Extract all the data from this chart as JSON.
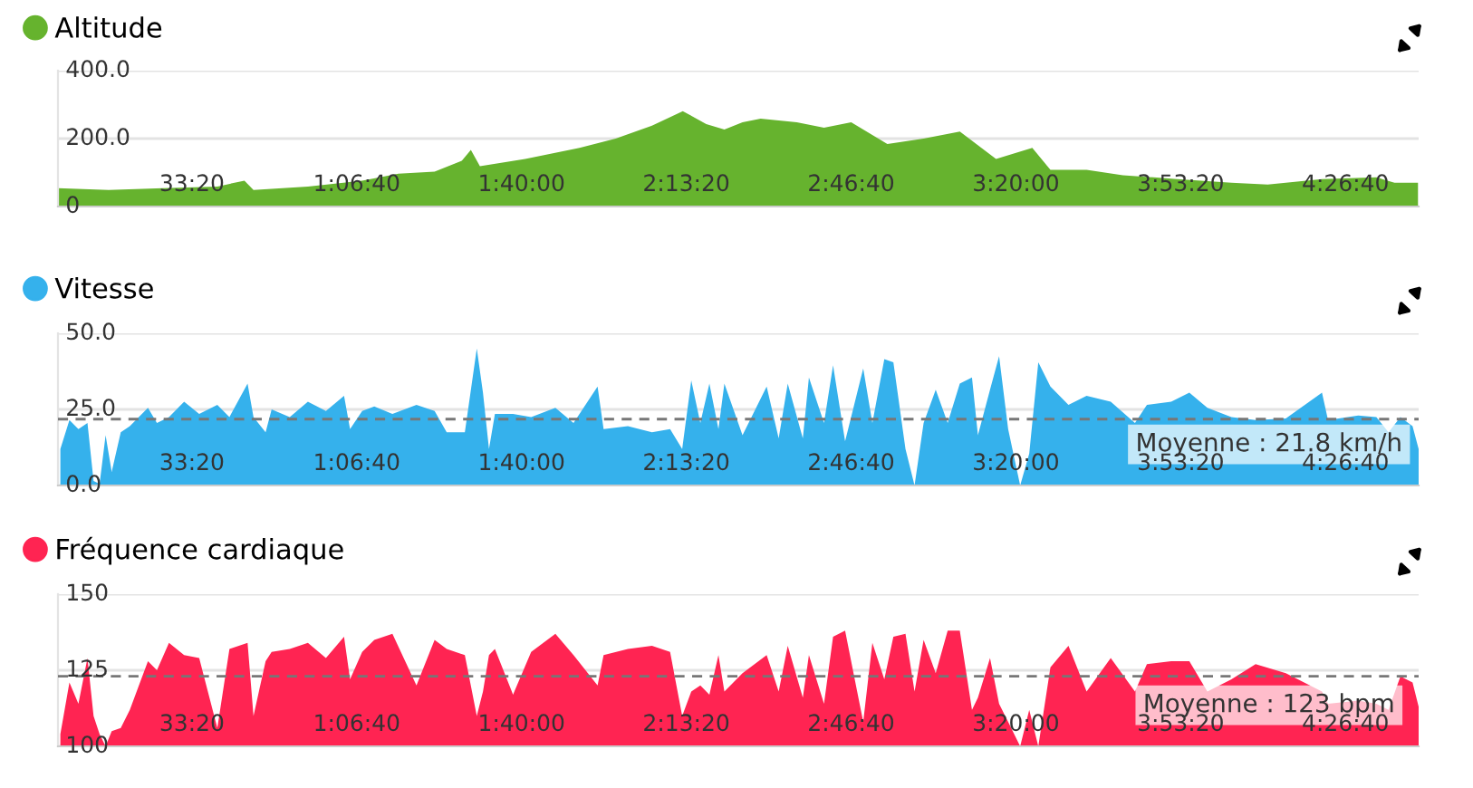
{
  "chart_data": [
    {
      "type": "area",
      "xlim": [
        374,
        16888
      ],
      "xticks": [
        {
          "value": 2000,
          "label": "33:20"
        },
        {
          "value": 4000,
          "label": "1:06:40"
        },
        {
          "value": 6000,
          "label": "1:40:00"
        },
        {
          "value": 8000,
          "label": "2:13:20"
        },
        {
          "value": 10000,
          "label": "2:46:40"
        },
        {
          "value": 12000,
          "label": "3:20:00"
        },
        {
          "value": 14000,
          "label": "3:53:20"
        },
        {
          "value": 16000,
          "label": "4:26:40"
        }
      ],
      "ylim": [
        0,
        400
      ],
      "yticks": [
        {
          "value": 0,
          "label": "0"
        },
        {
          "value": 200,
          "label": "200.0"
        },
        {
          "value": 400,
          "label": "400.0"
        }
      ],
      "grid": "y",
      "legend": "top left",
      "x": [
        374,
        989,
        1648,
        2308,
        2637,
        2747,
        3407,
        4066,
        4506,
        4945,
        5275,
        5385,
        5495,
        6044,
        6704,
        7143,
        7583,
        7957,
        8242,
        8462,
        8682,
        8902,
        9341,
        9671,
        10001,
        10440,
        10880,
        11320,
        11759,
        12199,
        12419,
        12858,
        13298,
        13957,
        14617,
        15056,
        15715,
        16375,
        16595,
        16880
      ],
      "series": [
        {
          "name": "Altitude",
          "color": "#66b32e",
          "values": [
            54,
            49,
            54,
            59,
            76,
            49,
            59,
            76,
            97,
            103,
            135,
            167,
            119,
            140,
            173,
            200,
            238,
            281,
            243,
            227,
            248,
            259,
            248,
            232,
            248,
            184,
            200,
            221,
            140,
            173,
            108,
            108,
            92,
            81,
            70,
            65,
            81,
            86,
            70,
            70
          ]
        }
      ]
    },
    {
      "type": "area",
      "xlim": [
        374,
        16888
      ],
      "xticks": [
        {
          "value": 2000,
          "label": "33:20"
        },
        {
          "value": 4000,
          "label": "1:06:40"
        },
        {
          "value": 6000,
          "label": "1:40:00"
        },
        {
          "value": 8000,
          "label": "2:13:20"
        },
        {
          "value": 10000,
          "label": "2:46:40"
        },
        {
          "value": 12000,
          "label": "3:20:00"
        },
        {
          "value": 14000,
          "label": "3:53:20"
        },
        {
          "value": 16000,
          "label": "4:26:40"
        }
      ],
      "ylim": [
        0,
        50
      ],
      "yticks": [
        {
          "value": 0,
          "label": "0.0"
        },
        {
          "value": 25,
          "label": "25.0"
        },
        {
          "value": 50,
          "label": "50.0"
        }
      ],
      "grid": "y",
      "legend": "top left",
      "ref_lines": [
        {
          "axis": "y",
          "value": 21.8,
          "label": "Moyenne : 21.8 km/h",
          "color": "#777777",
          "line_style": "dashed"
        }
      ],
      "x": [
        403,
        513,
        622,
        732,
        806,
        879,
        952,
        1026,
        1136,
        1246,
        1466,
        1575,
        1721,
        1905,
        2088,
        2308,
        2455,
        2675,
        2747,
        2894,
        2967,
        3187,
        3407,
        3626,
        3846,
        3919,
        4066,
        4213,
        4433,
        4725,
        4945,
        5092,
        5312,
        5457,
        5532,
        5605,
        5677,
        5897,
        6117,
        6411,
        6631,
        6923,
        6996,
        7291,
        7583,
        7803,
        7950,
        8060,
        8170,
        8280,
        8390,
        8462,
        8682,
        8975,
        9121,
        9231,
        9414,
        9488,
        9671,
        9781,
        9927,
        10147,
        10258,
        10403,
        10513,
        10660,
        10770,
        10880,
        11027,
        11172,
        11319,
        11467,
        11539,
        11686,
        11796,
        11906,
        12052,
        12162,
        12272,
        12419,
        12638,
        12858,
        13151,
        13445,
        13590,
        13885,
        14105,
        14324,
        14616,
        14909,
        15276,
        15715,
        15788,
        16155,
        16375,
        16522,
        16667,
        16814,
        16888
      ],
      "series": [
        {
          "name": "Vitesse",
          "color": "#35b1ec",
          "values": [
            12,
            21.5,
            18.5,
            20.5,
            1.5,
            0.5,
            16.5,
            4.5,
            17.5,
            19.5,
            25.5,
            20.5,
            22.5,
            27.5,
            23.5,
            26.5,
            22.5,
            33.5,
            22.5,
            17.5,
            25,
            22.5,
            27.5,
            24.5,
            29.5,
            18.5,
            24.5,
            26,
            23.5,
            26.5,
            24.5,
            17.5,
            17.5,
            45,
            30.5,
            12,
            23.5,
            23.5,
            22.5,
            25.5,
            20.5,
            32.5,
            18.5,
            19.5,
            17.5,
            18.5,
            12,
            34.5,
            20.5,
            33.5,
            18.5,
            33.5,
            16.5,
            32.5,
            15.5,
            33.5,
            15.5,
            35.5,
            20.5,
            39.5,
            14.5,
            38.5,
            20.5,
            41.5,
            40.5,
            12,
            0,
            20.5,
            31.5,
            20.5,
            33.5,
            35.5,
            16.5,
            31.5,
            42.5,
            18.5,
            0,
            10.5,
            40.5,
            32.5,
            26.5,
            29.5,
            27.5,
            20.5,
            26.5,
            27.5,
            30.5,
            25.5,
            22.5,
            21.5,
            22,
            30.5,
            21.5,
            23,
            22.5,
            17.5,
            22.5,
            19.5,
            12
          ]
        }
      ]
    },
    {
      "type": "area",
      "xlim": [
        374,
        16888
      ],
      "xticks": [
        {
          "value": 2000,
          "label": "33:20"
        },
        {
          "value": 4000,
          "label": "1:06:40"
        },
        {
          "value": 6000,
          "label": "1:40:00"
        },
        {
          "value": 8000,
          "label": "2:13:20"
        },
        {
          "value": 10000,
          "label": "2:46:40"
        },
        {
          "value": 12000,
          "label": "3:20:00"
        },
        {
          "value": 14000,
          "label": "3:53:20"
        },
        {
          "value": 16000,
          "label": "4:26:40"
        }
      ],
      "ylim": [
        100,
        150
      ],
      "yticks": [
        100,
        125,
        150
      ],
      "grid": "y",
      "legend": "top left",
      "ref_lines": [
        {
          "axis": "y",
          "value": 123,
          "label": "Moyenne : 123 bpm",
          "color": "#777777",
          "line_style": "dashed"
        }
      ],
      "x": [
        403,
        513,
        622,
        732,
        806,
        879,
        952,
        1026,
        1136,
        1246,
        1466,
        1575,
        1721,
        1905,
        2088,
        2308,
        2455,
        2675,
        2747,
        2894,
        2967,
        3187,
        3407,
        3626,
        3846,
        3919,
        4066,
        4213,
        4433,
        4725,
        4945,
        5092,
        5312,
        5457,
        5532,
        5605,
        5677,
        5897,
        6117,
        6411,
        6631,
        6923,
        6996,
        7291,
        7583,
        7803,
        7950,
        8060,
        8170,
        8280,
        8390,
        8462,
        8682,
        8975,
        9121,
        9231,
        9414,
        9488,
        9671,
        9781,
        9927,
        10147,
        10258,
        10403,
        10513,
        10660,
        10770,
        10880,
        11027,
        11172,
        11319,
        11467,
        11539,
        11686,
        11796,
        11906,
        12052,
        12162,
        12272,
        12419,
        12638,
        12858,
        13151,
        13445,
        13590,
        13885,
        14105,
        14324,
        14616,
        14909,
        15276,
        15715,
        15788,
        16155,
        16375,
        16522,
        16667,
        16814,
        16888
      ],
      "series": [
        {
          "name": "Fréquence cardiaque",
          "color": "#ff2452",
          "values": [
            104,
            121,
            114,
            129,
            110,
            104,
            100,
            105,
            106,
            112,
            128,
            125,
            134,
            130,
            129,
            106,
            132,
            134,
            110,
            128,
            131,
            132,
            134,
            129,
            136,
            122,
            131,
            135,
            137,
            120,
            135,
            132,
            130,
            110,
            118,
            130,
            132,
            117,
            131,
            137,
            130,
            120,
            130,
            132,
            133,
            131,
            110,
            118,
            120,
            117,
            130,
            118,
            124,
            130,
            118,
            133,
            116,
            130,
            114,
            136,
            138,
            108,
            134,
            122,
            136,
            137,
            118,
            135,
            124,
            138,
            138,
            112,
            116,
            129,
            114,
            108,
            100,
            112,
            100,
            126,
            133,
            118,
            129,
            118,
            127,
            128,
            128,
            118,
            122,
            127,
            124,
            118,
            114,
            115,
            114,
            112,
            123,
            121,
            113
          ]
        }
      ]
    }
  ]
}
